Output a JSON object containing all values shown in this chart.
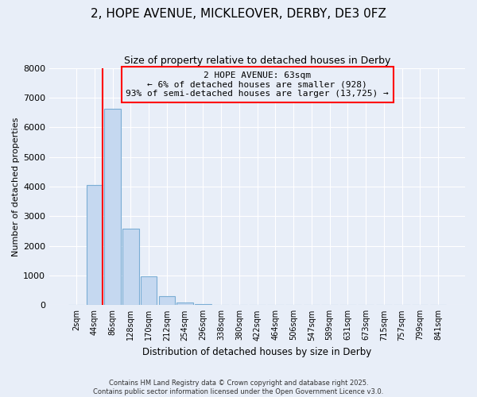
{
  "title": "2, HOPE AVENUE, MICKLEOVER, DERBY, DE3 0FZ",
  "subtitle": "Size of property relative to detached houses in Derby",
  "xlabel": "Distribution of detached houses by size in Derby",
  "ylabel": "Number of detached properties",
  "categories": [
    "2sqm",
    "44sqm",
    "86sqm",
    "128sqm",
    "170sqm",
    "212sqm",
    "254sqm",
    "296sqm",
    "338sqm",
    "380sqm",
    "422sqm",
    "464sqm",
    "506sqm",
    "547sqm",
    "589sqm",
    "631sqm",
    "673sqm",
    "715sqm",
    "757sqm",
    "799sqm",
    "841sqm"
  ],
  "values": [
    0,
    4050,
    6620,
    2580,
    980,
    290,
    85,
    25,
    8,
    3,
    1,
    0,
    0,
    0,
    0,
    0,
    0,
    0,
    0,
    0,
    0
  ],
  "bar_color": "#c5d8f0",
  "bar_edgecolor": "#7aadd4",
  "annotation_title": "2 HOPE AVENUE: 63sqm",
  "annotation_line1": "← 6% of detached houses are smaller (928)",
  "annotation_line2": "93% of semi-detached houses are larger (13,725) →",
  "ylim": [
    0,
    8000
  ],
  "yticks": [
    0,
    1000,
    2000,
    3000,
    4000,
    5000,
    6000,
    7000,
    8000
  ],
  "footer1": "Contains HM Land Registry data © Crown copyright and database right 2025.",
  "footer2": "Contains public sector information licensed under the Open Government Licence v3.0.",
  "title_fontsize": 11,
  "bg_color": "#e8eef8",
  "grid_color": "#ffffff"
}
